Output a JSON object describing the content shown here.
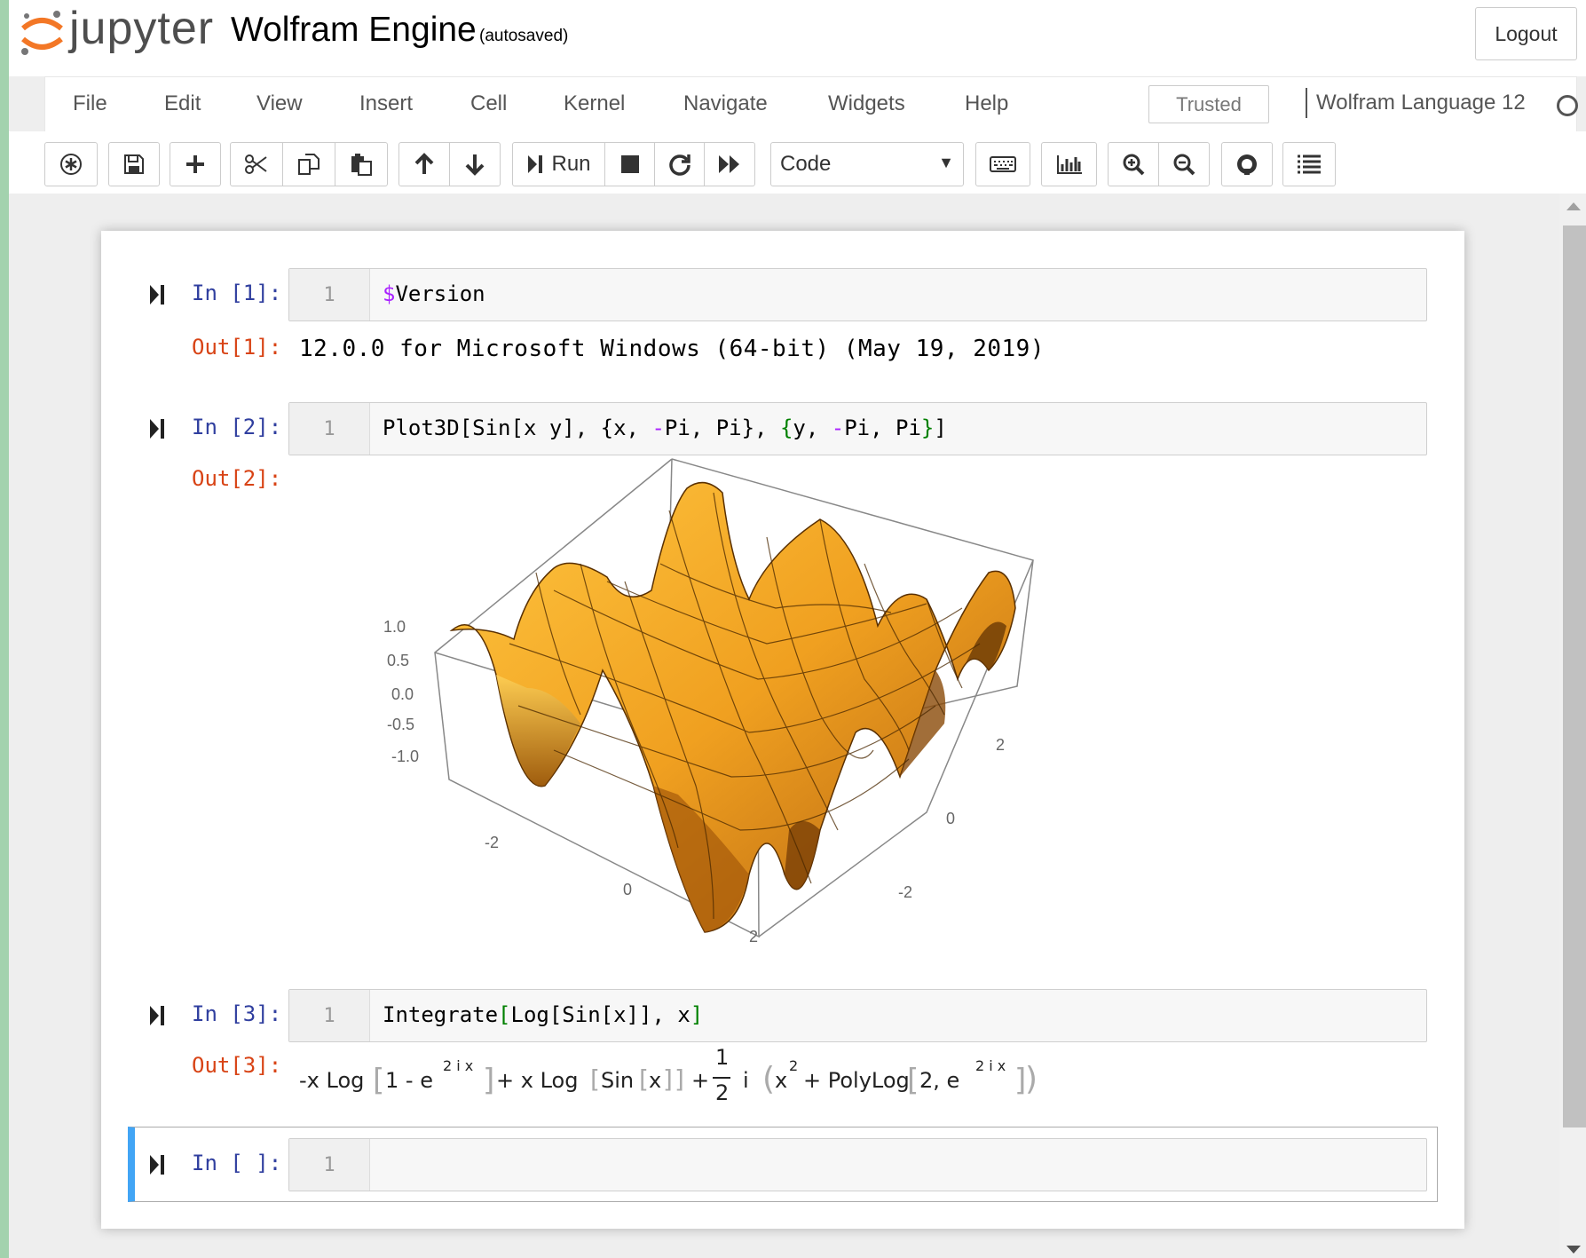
{
  "header": {
    "logo_text": "jupyter",
    "notebook_name": "Wolfram Engine",
    "autosave": "(autosaved)",
    "logout_label": "Logout"
  },
  "menu": {
    "items": [
      "File",
      "Edit",
      "View",
      "Insert",
      "Cell",
      "Kernel",
      "Navigate",
      "Widgets",
      "Help"
    ],
    "trusted": "Trusted",
    "kernel_name": "Wolfram Language 12"
  },
  "toolbar": {
    "run_label": "Run",
    "cell_type": "Code",
    "icons": [
      "command-palette-icon",
      "save-icon",
      "add-icon",
      "cut-icon",
      "copy-icon",
      "paste-icon",
      "move-up-icon",
      "move-down-icon",
      "run-icon",
      "stop-icon",
      "restart-icon",
      "fast-forward-icon",
      "keyboard-icon",
      "chart-icon",
      "zoom-in-icon",
      "zoom-out-icon",
      "github-icon",
      "list-icon"
    ]
  },
  "cells": [
    {
      "in_prompt": "In [1]:",
      "line_number": "1",
      "code": [
        {
          "text": "$",
          "color": "#aa22ff"
        },
        {
          "text": "Version",
          "color": "#000000"
        }
      ],
      "out_prompt": "Out[1]:",
      "output": "12.0.0 for Microsoft Windows (64-bit) (May 19, 2019)"
    },
    {
      "in_prompt": "In [2]:",
      "line_number": "1",
      "code": [
        {
          "text": "Plot3D[Sin[x y], {x, ",
          "color": "#000000"
        },
        {
          "text": "-",
          "color": "#aa22ff"
        },
        {
          "text": "Pi, Pi}, ",
          "color": "#000000"
        },
        {
          "text": "{",
          "color": "#008000"
        },
        {
          "text": "y, ",
          "color": "#000000"
        },
        {
          "text": "-",
          "color": "#aa22ff"
        },
        {
          "text": "Pi, Pi",
          "color": "#000000"
        },
        {
          "text": "}",
          "color": "#008000"
        },
        {
          "text": "]",
          "color": "#000000"
        }
      ],
      "out_prompt": "Out[2]:",
      "plot": {
        "function": "Sin[x y]",
        "z_ticks": [
          "1.0",
          "0.5",
          "0.0",
          "-0.5",
          "-1.0"
        ],
        "x_ticks": [
          "-2",
          "0",
          "2"
        ],
        "y_ticks": [
          "2",
          "0",
          "-2"
        ],
        "surface_color": "#f0a020"
      }
    },
    {
      "in_prompt": "In [3]:",
      "line_number": "1",
      "code": [
        {
          "text": "Integrate",
          "color": "#000000"
        },
        {
          "text": "[",
          "color": "#008000"
        },
        {
          "text": "Log[Sin[x]], x",
          "color": "#000000"
        },
        {
          "text": "]",
          "color": "#008000"
        }
      ],
      "out_prompt": "Out[3]:",
      "math": {
        "t1": "-x Log",
        "t2": "1 - e",
        "sup1": "2 i x",
        "t3": "+ x Log",
        "t4": "Sin",
        "t5": "x",
        "t6": "+",
        "num": "1",
        "den": "2",
        "t7": "i",
        "t8": "x",
        "sup2": "2",
        "t9": "+ PolyLog",
        "t10": "2, e",
        "sup3": "2 i x"
      }
    },
    {
      "in_prompt": "In [ ]:",
      "line_number": "1"
    }
  ],
  "colors": {
    "in_prompt": "#303f9f",
    "out_prompt": "#d84315",
    "active_border": "#42a5f5",
    "jupyter_orange": "#f37726"
  }
}
